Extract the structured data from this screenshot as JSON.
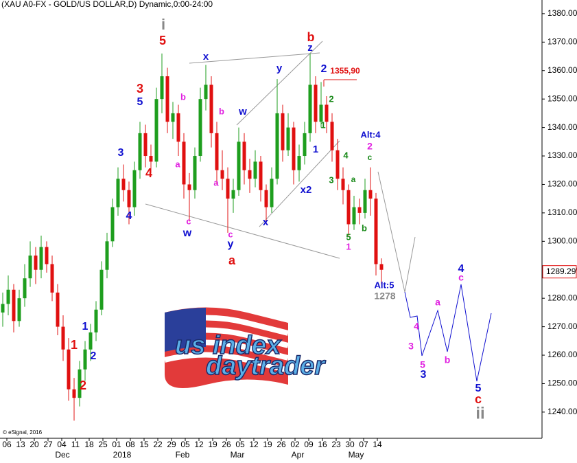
{
  "chart_data": {
    "type": "candlestick",
    "title": "(XAU A0-FX - GOLD/US DOLLAR,D) Dynamic,0:00-24:00",
    "copyright": "© eSignal, 2016",
    "up_color": "#1e9e1e",
    "down_color": "#e01010",
    "xlim": [
      -0.5,
      98.25
    ],
    "ylim": [
      1230.8,
      1384.8
    ],
    "yticks": [
      {
        "value": 1240,
        "label": "1240.00"
      },
      {
        "value": 1250,
        "label": "1250.00"
      },
      {
        "value": 1260,
        "label": "1260.00"
      },
      {
        "value": 1270,
        "label": "1270.00"
      },
      {
        "value": 1280,
        "label": "1280.00"
      },
      {
        "value": 1290,
        "label": "1290.00"
      },
      {
        "value": 1300,
        "label": "1300.00"
      },
      {
        "value": 1310,
        "label": "1310.00"
      },
      {
        "value": 1320,
        "label": "1320.00"
      },
      {
        "value": 1330,
        "label": "1330.00"
      },
      {
        "value": 1340,
        "label": "1340.00"
      },
      {
        "value": 1350,
        "label": "1350.00"
      },
      {
        "value": 1360,
        "label": "1360.00"
      },
      {
        "value": 1370,
        "label": "1370.00"
      },
      {
        "value": 1380,
        "label": "1380.00"
      }
    ],
    "xticks": [
      {
        "value": 0.75,
        "label": "06"
      },
      {
        "value": 3.25,
        "label": "13"
      },
      {
        "value": 5.75,
        "label": "20"
      },
      {
        "value": 8.25,
        "label": "27"
      },
      {
        "value": 10.75,
        "label": "04"
      },
      {
        "value": 13.25,
        "label": "11"
      },
      {
        "value": 15.75,
        "label": "18"
      },
      {
        "value": 18.25,
        "label": "25"
      },
      {
        "value": 20.75,
        "label": "01"
      },
      {
        "value": 23.25,
        "label": "08"
      },
      {
        "value": 25.75,
        "label": "15"
      },
      {
        "value": 28.25,
        "label": "22"
      },
      {
        "value": 30.75,
        "label": "29"
      },
      {
        "value": 33.25,
        "label": "05"
      },
      {
        "value": 35.75,
        "label": "12"
      },
      {
        "value": 38.25,
        "label": "19"
      },
      {
        "value": 40.75,
        "label": "26"
      },
      {
        "value": 43.25,
        "label": "05"
      },
      {
        "value": 45.75,
        "label": "12"
      },
      {
        "value": 48.25,
        "label": "19"
      },
      {
        "value": 50.75,
        "label": "26"
      },
      {
        "value": 53.25,
        "label": "02"
      },
      {
        "value": 55.75,
        "label": "09"
      },
      {
        "value": 58.25,
        "label": "16"
      },
      {
        "value": 60.75,
        "label": "23"
      },
      {
        "value": 63.25,
        "label": "30"
      },
      {
        "value": 65.75,
        "label": "07"
      },
      {
        "value": 68.25,
        "label": "14"
      }
    ],
    "months": [
      {
        "value": 10.875,
        "label": "Dec"
      },
      {
        "value": 21.75,
        "label": "2018"
      },
      {
        "value": 32.75,
        "label": "Feb"
      },
      {
        "value": 42.75,
        "label": "Mar"
      },
      {
        "value": 53.75,
        "label": "Apr"
      },
      {
        "value": 64.375,
        "label": "May"
      }
    ],
    "candles": [
      [
        1275,
        1282,
        1270,
        1278
      ],
      [
        1278,
        1288,
        1274,
        1283
      ],
      [
        1283,
        1285,
        1268,
        1272
      ],
      [
        1272,
        1283,
        1270,
        1280
      ],
      [
        1280,
        1292,
        1277,
        1287
      ],
      [
        1287,
        1300,
        1284,
        1295
      ],
      [
        1295,
        1298,
        1285,
        1290
      ],
      [
        1290,
        1302,
        1287,
        1298
      ],
      [
        1298,
        1300,
        1289,
        1292
      ],
      [
        1292,
        1295,
        1279,
        1282
      ],
      [
        1282,
        1285,
        1267,
        1270
      ],
      [
        1270,
        1274,
        1258,
        1262
      ],
      [
        1262,
        1266,
        1244,
        1248
      ],
      [
        1248,
        1252,
        1237,
        1245
      ],
      [
        1245,
        1258,
        1242,
        1255
      ],
      [
        1255,
        1265,
        1251,
        1262
      ],
      [
        1262,
        1271,
        1258,
        1268
      ],
      [
        1268,
        1279,
        1265,
        1276
      ],
      [
        1276,
        1293,
        1274,
        1290
      ],
      [
        1290,
        1303,
        1287,
        1300
      ],
      [
        1300,
        1315,
        1298,
        1312
      ],
      [
        1312,
        1326,
        1309,
        1322
      ],
      [
        1322,
        1327,
        1314,
        1318
      ],
      [
        1318,
        1321,
        1306,
        1312
      ],
      [
        1312,
        1328,
        1309,
        1325
      ],
      [
        1325,
        1342,
        1322,
        1338
      ],
      [
        1338,
        1341,
        1326,
        1330
      ],
      [
        1330,
        1334,
        1324,
        1328
      ],
      [
        1328,
        1354,
        1326,
        1350
      ],
      [
        1350,
        1366,
        1345,
        1358
      ],
      [
        1358,
        1361,
        1338,
        1342
      ],
      [
        1342,
        1349,
        1336,
        1345
      ],
      [
        1345,
        1348,
        1330,
        1335
      ],
      [
        1335,
        1338,
        1315,
        1320
      ],
      [
        1320,
        1324,
        1307,
        1318
      ],
      [
        1318,
        1333,
        1315,
        1330
      ],
      [
        1330,
        1354,
        1328,
        1350
      ],
      [
        1350,
        1362,
        1346,
        1355
      ],
      [
        1355,
        1358,
        1333,
        1338
      ],
      [
        1338,
        1342,
        1320,
        1325
      ],
      [
        1325,
        1332,
        1318,
        1322
      ],
      [
        1322,
        1326,
        1303,
        1315
      ],
      [
        1315,
        1322,
        1310,
        1318
      ],
      [
        1318,
        1340,
        1316,
        1335
      ],
      [
        1335,
        1338,
        1320,
        1325
      ],
      [
        1325,
        1329,
        1317,
        1322
      ],
      [
        1322,
        1332,
        1319,
        1328
      ],
      [
        1328,
        1330,
        1314,
        1318
      ],
      [
        1318,
        1320,
        1306,
        1312
      ],
      [
        1312,
        1326,
        1310,
        1322
      ],
      [
        1322,
        1357,
        1320,
        1345
      ],
      [
        1345,
        1348,
        1328,
        1332
      ],
      [
        1332,
        1345,
        1330,
        1340
      ],
      [
        1340,
        1342,
        1320,
        1325
      ],
      [
        1325,
        1334,
        1321,
        1330
      ],
      [
        1330,
        1342,
        1327,
        1338
      ],
      [
        1338,
        1366,
        1335,
        1355
      ],
      [
        1355,
        1358,
        1338,
        1342
      ],
      [
        1342,
        1356,
        1340,
        1348
      ],
      [
        1348,
        1351,
        1338,
        1342
      ],
      [
        1342,
        1345,
        1328,
        1332
      ],
      [
        1332,
        1336,
        1318,
        1322
      ],
      [
        1322,
        1326,
        1313,
        1318
      ],
      [
        1318,
        1320,
        1302,
        1306
      ],
      [
        1306,
        1316,
        1304,
        1312
      ],
      [
        1312,
        1315,
        1306,
        1310
      ],
      [
        1310,
        1322,
        1308,
        1318
      ],
      [
        1318,
        1326,
        1309,
        1315
      ],
      [
        1315,
        1317,
        1288,
        1292
      ],
      [
        1292,
        1294,
        1285,
        1290
      ]
    ],
    "last_price": 1289.29,
    "last_price_color": "#e01010",
    "annotations": [
      {
        "text": "i",
        "color": "#888888"
      },
      {
        "text": "5",
        "color": "#e01010"
      },
      {
        "text": "3",
        "color": "#e01010"
      },
      {
        "text": "5",
        "color": "#1010d0"
      },
      {
        "text": "b",
        "color": "#e020e0"
      },
      {
        "text": "4",
        "color": "#e01010"
      },
      {
        "text": "3",
        "color": "#1010d0"
      },
      {
        "text": "4",
        "color": "#1010d0"
      },
      {
        "text": "a",
        "color": "#e020e0"
      },
      {
        "text": "c",
        "color": "#e020e0"
      },
      {
        "text": "w",
        "color": "#1010d0"
      },
      {
        "text": "x",
        "color": "#1010d0"
      },
      {
        "text": "b",
        "color": "#e020e0"
      },
      {
        "text": "w",
        "color": "#1010d0"
      },
      {
        "text": "a",
        "color": "#e020e0"
      },
      {
        "text": "c",
        "color": "#e020e0"
      },
      {
        "text": "y",
        "color": "#1010d0"
      },
      {
        "text": "a",
        "color": "#e01010"
      },
      {
        "text": "y",
        "color": "#1010d0"
      },
      {
        "text": "b",
        "color": "#e01010"
      },
      {
        "text": "z",
        "color": "#1010d0"
      },
      {
        "text": "2",
        "color": "#1010d0"
      },
      {
        "text": "1355,90",
        "color": "#e01010"
      },
      {
        "text": "2",
        "color": "#1a8a1a"
      },
      {
        "text": "1",
        "color": "#1a8a1a"
      },
      {
        "text": "1",
        "color": "#1010d0"
      },
      {
        "text": "x2",
        "color": "#1010d0"
      },
      {
        "text": "x",
        "color": "#1010d0"
      },
      {
        "text": "4",
        "color": "#1a8a1a"
      },
      {
        "text": "3",
        "color": "#1a8a1a"
      },
      {
        "text": "a",
        "color": "#1a8a1a"
      },
      {
        "text": "b",
        "color": "#1a8a1a"
      },
      {
        "text": "5",
        "color": "#1a8a1a"
      },
      {
        "text": "1",
        "color": "#e020e0"
      },
      {
        "text": "Alt:4",
        "color": "#1010d0"
      },
      {
        "text": "2",
        "color": "#e020e0"
      },
      {
        "text": "c",
        "color": "#1a8a1a"
      },
      {
        "text": "Alt:5",
        "color": "#1010d0"
      },
      {
        "text": "1278",
        "color": "#888888"
      },
      {
        "text": "1",
        "color": "#e01010"
      },
      {
        "text": "2",
        "color": "#e01010"
      },
      {
        "text": "1",
        "color": "#1010d0"
      },
      {
        "text": "2",
        "color": "#1010d0"
      },
      {
        "text": "3",
        "color": "#e020e0"
      },
      {
        "text": "4",
        "color": "#e020e0"
      },
      {
        "text": "5",
        "color": "#e020e0"
      },
      {
        "text": "3",
        "color": "#1010d0"
      },
      {
        "text": "a",
        "color": "#e020e0"
      },
      {
        "text": "b",
        "color": "#e020e0"
      },
      {
        "text": "4",
        "color": "#1010d0"
      },
      {
        "text": "c",
        "color": "#e020e0"
      },
      {
        "text": "5",
        "color": "#1010d0"
      },
      {
        "text": "c",
        "color": "#e01010"
      },
      {
        "text": "ii",
        "color": "#888888"
      }
    ],
    "logo": {
      "line1": "us index",
      "line2": "daytrader"
    }
  }
}
